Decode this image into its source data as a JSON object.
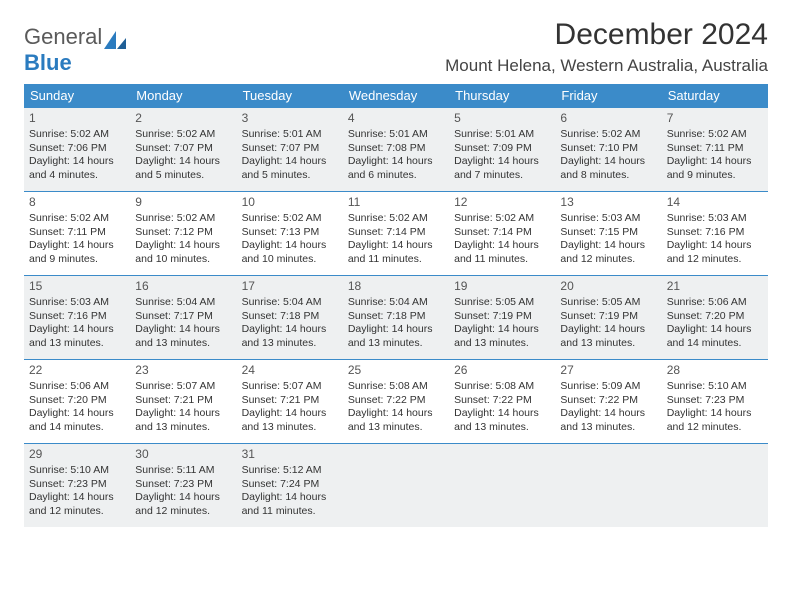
{
  "logo": {
    "text1": "General",
    "text2": "Blue"
  },
  "title": "December 2024",
  "location": "Mount Helena, Western Australia, Australia",
  "week_header": [
    "Sunday",
    "Monday",
    "Tuesday",
    "Wednesday",
    "Thursday",
    "Friday",
    "Saturday"
  ],
  "colors": {
    "header_bg": "#3b8bc9",
    "header_fg": "#ffffff",
    "shade_bg": "#eef0f1",
    "rule": "#3b8bc9",
    "logo_accent": "#2a7bbf"
  },
  "weeks": [
    {
      "shaded": true,
      "days": [
        {
          "n": "1",
          "sr": "5:02 AM",
          "ss": "7:06 PM",
          "dl": "14 hours and 4 minutes."
        },
        {
          "n": "2",
          "sr": "5:02 AM",
          "ss": "7:07 PM",
          "dl": "14 hours and 5 minutes."
        },
        {
          "n": "3",
          "sr": "5:01 AM",
          "ss": "7:07 PM",
          "dl": "14 hours and 5 minutes."
        },
        {
          "n": "4",
          "sr": "5:01 AM",
          "ss": "7:08 PM",
          "dl": "14 hours and 6 minutes."
        },
        {
          "n": "5",
          "sr": "5:01 AM",
          "ss": "7:09 PM",
          "dl": "14 hours and 7 minutes."
        },
        {
          "n": "6",
          "sr": "5:02 AM",
          "ss": "7:10 PM",
          "dl": "14 hours and 8 minutes."
        },
        {
          "n": "7",
          "sr": "5:02 AM",
          "ss": "7:11 PM",
          "dl": "14 hours and 9 minutes."
        }
      ]
    },
    {
      "shaded": false,
      "days": [
        {
          "n": "8",
          "sr": "5:02 AM",
          "ss": "7:11 PM",
          "dl": "14 hours and 9 minutes."
        },
        {
          "n": "9",
          "sr": "5:02 AM",
          "ss": "7:12 PM",
          "dl": "14 hours and 10 minutes."
        },
        {
          "n": "10",
          "sr": "5:02 AM",
          "ss": "7:13 PM",
          "dl": "14 hours and 10 minutes."
        },
        {
          "n": "11",
          "sr": "5:02 AM",
          "ss": "7:14 PM",
          "dl": "14 hours and 11 minutes."
        },
        {
          "n": "12",
          "sr": "5:02 AM",
          "ss": "7:14 PM",
          "dl": "14 hours and 11 minutes."
        },
        {
          "n": "13",
          "sr": "5:03 AM",
          "ss": "7:15 PM",
          "dl": "14 hours and 12 minutes."
        },
        {
          "n": "14",
          "sr": "5:03 AM",
          "ss": "7:16 PM",
          "dl": "14 hours and 12 minutes."
        }
      ]
    },
    {
      "shaded": true,
      "days": [
        {
          "n": "15",
          "sr": "5:03 AM",
          "ss": "7:16 PM",
          "dl": "14 hours and 13 minutes."
        },
        {
          "n": "16",
          "sr": "5:04 AM",
          "ss": "7:17 PM",
          "dl": "14 hours and 13 minutes."
        },
        {
          "n": "17",
          "sr": "5:04 AM",
          "ss": "7:18 PM",
          "dl": "14 hours and 13 minutes."
        },
        {
          "n": "18",
          "sr": "5:04 AM",
          "ss": "7:18 PM",
          "dl": "14 hours and 13 minutes."
        },
        {
          "n": "19",
          "sr": "5:05 AM",
          "ss": "7:19 PM",
          "dl": "14 hours and 13 minutes."
        },
        {
          "n": "20",
          "sr": "5:05 AM",
          "ss": "7:19 PM",
          "dl": "14 hours and 13 minutes."
        },
        {
          "n": "21",
          "sr": "5:06 AM",
          "ss": "7:20 PM",
          "dl": "14 hours and 14 minutes."
        }
      ]
    },
    {
      "shaded": false,
      "days": [
        {
          "n": "22",
          "sr": "5:06 AM",
          "ss": "7:20 PM",
          "dl": "14 hours and 14 minutes."
        },
        {
          "n": "23",
          "sr": "5:07 AM",
          "ss": "7:21 PM",
          "dl": "14 hours and 13 minutes."
        },
        {
          "n": "24",
          "sr": "5:07 AM",
          "ss": "7:21 PM",
          "dl": "14 hours and 13 minutes."
        },
        {
          "n": "25",
          "sr": "5:08 AM",
          "ss": "7:22 PM",
          "dl": "14 hours and 13 minutes."
        },
        {
          "n": "26",
          "sr": "5:08 AM",
          "ss": "7:22 PM",
          "dl": "14 hours and 13 minutes."
        },
        {
          "n": "27",
          "sr": "5:09 AM",
          "ss": "7:22 PM",
          "dl": "14 hours and 13 minutes."
        },
        {
          "n": "28",
          "sr": "5:10 AM",
          "ss": "7:23 PM",
          "dl": "14 hours and 12 minutes."
        }
      ]
    },
    {
      "shaded": true,
      "days": [
        {
          "n": "29",
          "sr": "5:10 AM",
          "ss": "7:23 PM",
          "dl": "14 hours and 12 minutes."
        },
        {
          "n": "30",
          "sr": "5:11 AM",
          "ss": "7:23 PM",
          "dl": "14 hours and 12 minutes."
        },
        {
          "n": "31",
          "sr": "5:12 AM",
          "ss": "7:24 PM",
          "dl": "14 hours and 11 minutes."
        },
        null,
        null,
        null,
        null
      ]
    }
  ],
  "labels": {
    "sunrise": "Sunrise:",
    "sunset": "Sunset:",
    "daylight": "Daylight:"
  }
}
